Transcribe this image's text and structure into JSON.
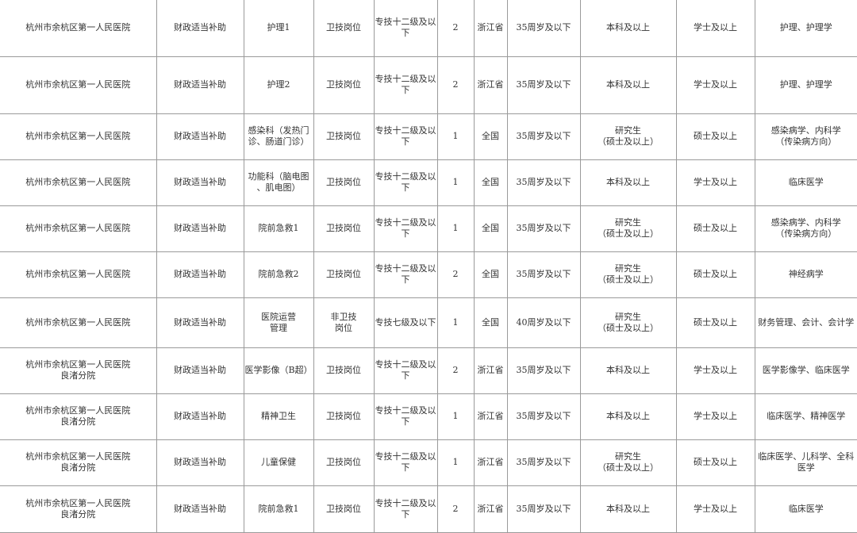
{
  "rows": [
    [
      "杭州市余杭区第一人民医院",
      "财政适当补助",
      "护理1",
      "卫技岗位",
      "专技十二级及以\n下",
      "2",
      "浙江省",
      "35周岁及以下",
      "本科及以上",
      "学士及以上",
      "护理、护理学"
    ],
    [
      "杭州市余杭区第一人民医院",
      "财政适当补助",
      "护理2",
      "卫技岗位",
      "专技十二级及以\n下",
      "2",
      "浙江省",
      "35周岁及以下",
      "本科及以上",
      "学士及以上",
      "护理、护理学"
    ],
    [
      "杭州市余杭区第一人民医院",
      "财政适当补助",
      "感染科（发热门\n诊、肠道门诊）",
      "卫技岗位",
      "专技十二级及以\n下",
      "1",
      "全国",
      "35周岁及以下",
      "研究生\n（硕士及以上）",
      "硕士及以上",
      "感染病学、内科学\n（传染病方向）"
    ],
    [
      "杭州市余杭区第一人民医院",
      "财政适当补助",
      "功能科（脑电图\n、肌电图）",
      "卫技岗位",
      "专技十二级及以\n下",
      "1",
      "全国",
      "35周岁及以下",
      "本科及以上",
      "学士及以上",
      "临床医学"
    ],
    [
      "杭州市余杭区第一人民医院",
      "财政适当补助",
      "院前急救1",
      "卫技岗位",
      "专技十二级及以\n下",
      "1",
      "全国",
      "35周岁及以下",
      "研究生\n（硕士及以上）",
      "硕士及以上",
      "感染病学、内科学\n（传染病方向）"
    ],
    [
      "杭州市余杭区第一人民医院",
      "财政适当补助",
      "院前急救2",
      "卫技岗位",
      "专技十二级及以\n下",
      "2",
      "全国",
      "35周岁及以下",
      "研究生\n（硕士及以上）",
      "硕士及以上",
      "神经病学"
    ],
    [
      "杭州市余杭区第一人民医院",
      "财政适当补助",
      "医院运营\n管理",
      "非卫技\n岗位",
      "专技七级及以下",
      "1",
      "全国",
      "40周岁及以下",
      "研究生\n（硕士及以上）",
      "硕士及以上",
      "财务管理、会计、会计学"
    ],
    [
      "杭州市余杭区第一人民医院\n良渚分院",
      "财政适当补助",
      "医学影像（B超）",
      "卫技岗位",
      "专技十二级及以\n下",
      "2",
      "浙江省",
      "35周岁及以下",
      "本科及以上",
      "学士及以上",
      "医学影像学、临床医学"
    ],
    [
      "杭州市余杭区第一人民医院\n良渚分院",
      "财政适当补助",
      "精神卫生",
      "卫技岗位",
      "专技十二级及以\n下",
      "1",
      "浙江省",
      "35周岁及以下",
      "本科及以上",
      "学士及以上",
      "临床医学、精神医学"
    ],
    [
      "杭州市余杭区第一人民医院\n良渚分院",
      "财政适当补助",
      "儿童保健",
      "卫技岗位",
      "专技十二级及以\n下",
      "1",
      "浙江省",
      "35周岁及以下",
      "研究生\n（硕士及以上）",
      "硕士及以上",
      "临床医学、儿科学、全科\n医学"
    ],
    [
      "杭州市余杭区第一人民医院\n良渚分院",
      "财政适当补助",
      "院前急救1",
      "卫技岗位",
      "专技十二级及以\n下",
      "2",
      "浙江省",
      "35周岁及以下",
      "本科及以上",
      "学士及以上",
      "临床医学"
    ]
  ]
}
